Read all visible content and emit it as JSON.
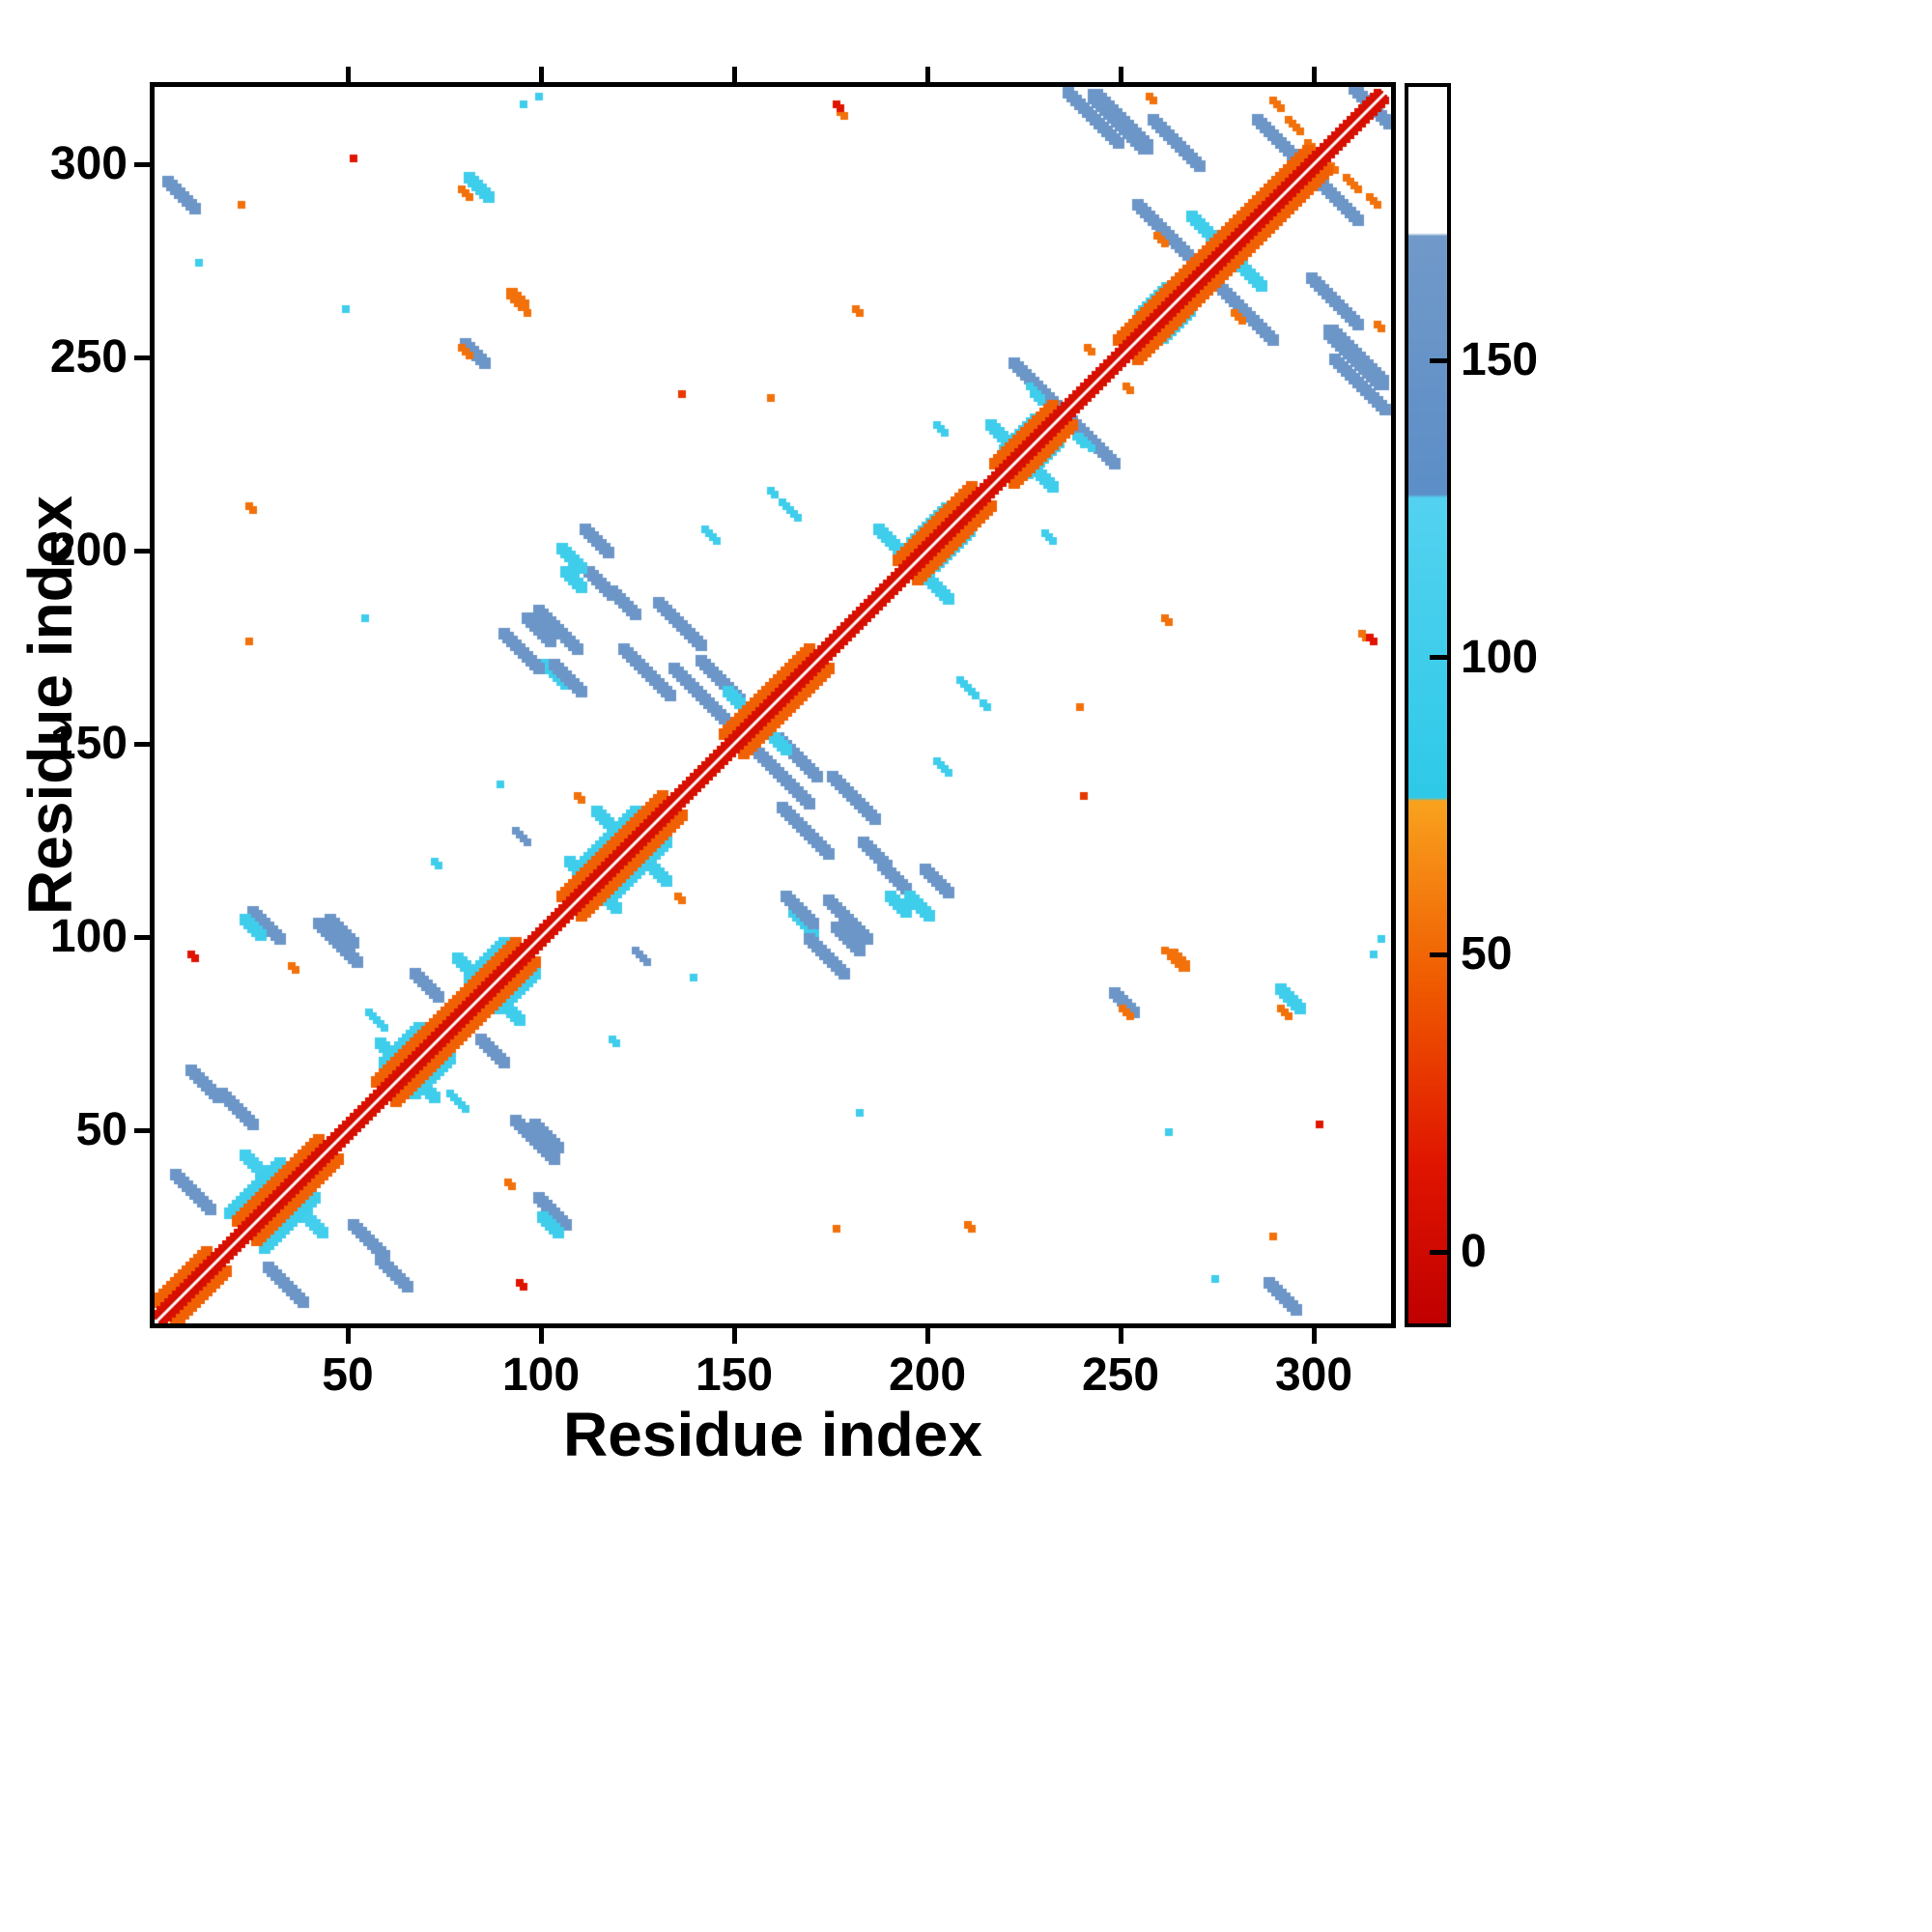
{
  "chart_data": {
    "type": "heatmap",
    "title": "",
    "xlabel": "Residue index",
    "ylabel": "Residue index",
    "x_range": [
      0,
      320
    ],
    "y_range": [
      0,
      320
    ],
    "x_ticks": [
      50,
      100,
      150,
      200,
      250,
      300
    ],
    "y_ticks": [
      50,
      100,
      150,
      200,
      250,
      300
    ],
    "grid": false,
    "legend": "none",
    "background": "#ffffff",
    "frame_color": "#000000",
    "diagonal_gap": true,
    "colorbar": {
      "min": -12,
      "max": 196,
      "ticks": [
        0,
        50,
        100,
        150
      ],
      "stops": [
        [
          -12,
          "#c00000"
        ],
        [
          15,
          "#e01500"
        ],
        [
          45,
          "#ef5a00"
        ],
        [
          76,
          "#f9a21e"
        ],
        [
          76.5,
          "#2ec9e8"
        ],
        [
          127,
          "#53d2f0"
        ],
        [
          127.5,
          "#5c8ec7"
        ],
        [
          171,
          "#7199c9"
        ],
        [
          171.5,
          "#ffffff"
        ],
        [
          196,
          "#ffffff"
        ]
      ]
    },
    "feature_format": [
      "x_residue",
      "y_residue",
      "length",
      "direction(a=antiparallel,p=parallel)",
      "width",
      "colorbar_value"
    ],
    "features": [
      [
        4,
        296,
        8,
        "a",
        3,
        160
      ],
      [
        18,
        60,
        9,
        "a",
        3,
        160
      ],
      [
        43,
        104,
        11,
        "a",
        3,
        160
      ],
      [
        30,
        15,
        10,
        "a",
        3,
        160
      ],
      [
        59,
        17,
        8,
        "a",
        3,
        160
      ],
      [
        100,
        33,
        8,
        "a",
        3,
        160
      ],
      [
        99,
        52,
        7,
        "a",
        3,
        160
      ],
      [
        85,
        74,
        7,
        "a",
        3,
        160
      ],
      [
        24,
        105,
        5,
        "a",
        3,
        100
      ],
      [
        10,
        96,
        2,
        "a",
        2,
        15
      ],
      [
        36,
        93,
        2,
        "a",
        2,
        55
      ],
      [
        97,
        183,
        7,
        "a",
        3,
        160
      ],
      [
        102,
        171,
        6,
        "a",
        3,
        100
      ],
      [
        107,
        195,
        5,
        "a",
        3,
        100
      ],
      [
        112,
        206,
        7,
        "a",
        3,
        160
      ],
      [
        119,
        190,
        7,
        "a",
        3,
        160
      ],
      [
        131,
        187,
        12,
        "a",
        3,
        160
      ],
      [
        142,
        172,
        11,
        "a",
        3,
        160
      ],
      [
        157,
        148,
        14,
        "a",
        3,
        160
      ],
      [
        163,
        134,
        13,
        "a",
        3,
        160
      ],
      [
        175,
        110,
        11,
        "a",
        3,
        160
      ],
      [
        170,
        100,
        10,
        "a",
        3,
        160
      ],
      [
        164,
        111,
        8,
        "a",
        3,
        160
      ],
      [
        189,
        119,
        7,
        "a",
        3,
        160
      ],
      [
        196,
        111,
        6,
        "a",
        3,
        100
      ],
      [
        209,
        167,
        5,
        "a",
        2,
        100
      ],
      [
        231,
        205,
        3,
        "a",
        2,
        100
      ],
      [
        223,
        249,
        14,
        "a",
        3,
        160
      ],
      [
        237,
        319,
        14,
        "a",
        3,
        160
      ],
      [
        255,
        290,
        14,
        "a",
        3,
        160
      ],
      [
        262,
        283,
        13,
        "a",
        3,
        160
      ],
      [
        286,
        312,
        13,
        "a",
        3,
        160
      ],
      [
        300,
        271,
        13,
        "a",
        3,
        160
      ],
      [
        305,
        257,
        14,
        "a",
        4,
        160
      ],
      [
        311,
        320,
        10,
        "a",
        3,
        160
      ],
      [
        82,
        297,
        6,
        "a",
        3,
        100
      ],
      [
        80,
        294,
        3,
        "a",
        2,
        55
      ],
      [
        249,
        86,
        6,
        "a",
        3,
        160
      ],
      [
        251,
        82,
        3,
        "a",
        2,
        55
      ],
      [
        264,
        96,
        4,
        "a",
        3,
        55
      ],
      [
        12,
        275,
        1,
        "a",
        2,
        100
      ],
      [
        50,
        263,
        1,
        "a",
        2,
        100
      ],
      [
        23,
        290,
        1,
        "a",
        2,
        55
      ],
      [
        25,
        212,
        2,
        "a",
        2,
        55
      ],
      [
        25,
        177,
        1,
        "a",
        2,
        55
      ],
      [
        55,
        183,
        1,
        "a",
        2,
        100
      ],
      [
        96,
        316,
        1,
        "a",
        2,
        100
      ],
      [
        97,
        262,
        1,
        "a",
        2,
        55
      ],
      [
        178,
        314,
        2,
        "a",
        2,
        55
      ],
      [
        160,
        240,
        1,
        "a",
        2,
        55
      ],
      [
        137,
        241,
        1,
        "a",
        2,
        30
      ],
      [
        160,
        216,
        2,
        "a",
        2,
        100
      ],
      [
        143,
        206,
        4,
        "a",
        2,
        100
      ],
      [
        110,
        137,
        2,
        "a",
        2,
        55
      ],
      [
        90,
        140,
        1,
        "a",
        2,
        100
      ],
      [
        94,
        128,
        4,
        "a",
        2,
        160
      ],
      [
        73,
        120,
        2,
        "a",
        2,
        100
      ],
      [
        262,
        183,
        2,
        "a",
        2,
        55
      ],
      [
        315,
        178,
        2,
        "a",
        2,
        15
      ],
      [
        302,
        52,
        1,
        "a",
        2,
        15
      ],
      [
        318,
        100,
        1,
        "a",
        2,
        100
      ],
      [
        258,
        318,
        2,
        "a",
        2,
        55
      ],
      [
        290,
        317,
        3,
        "a",
        2,
        55
      ],
      [
        299,
        306,
        3,
        "a",
        2,
        55
      ],
      [
        309,
        297,
        4,
        "a",
        2,
        55
      ],
      [
        280,
        262,
        3,
        "a",
        2,
        55
      ],
      [
        252,
        243,
        2,
        "a",
        2,
        55
      ],
      [
        227,
        243,
        4,
        "a",
        2,
        100
      ],
      [
        239,
        230,
        3,
        "a",
        2,
        100
      ],
      [
        77,
        60,
        5,
        "a",
        2,
        100
      ],
      [
        24,
        44,
        20,
        "a",
        3,
        105
      ],
      [
        59,
        73,
        14,
        "a",
        3,
        100
      ],
      [
        79,
        95,
        16,
        "a",
        3,
        100
      ],
      [
        108,
        120,
        12,
        "a",
        3,
        100
      ],
      [
        115,
        133,
        14,
        "a",
        3,
        100
      ],
      [
        149,
        164,
        15,
        "a",
        3,
        100
      ],
      [
        188,
        206,
        10,
        "a",
        3,
        100
      ],
      [
        217,
        233,
        16,
        "a",
        3,
        100
      ],
      [
        269,
        287,
        18,
        "a",
        3,
        100
      ],
      [
        20,
        29,
        14,
        "p",
        3,
        100
      ],
      [
        60,
        68,
        10,
        "p",
        3,
        100
      ],
      [
        82,
        90,
        10,
        "p",
        3,
        100
      ],
      [
        110,
        118,
        16,
        "p",
        3,
        100
      ],
      [
        196,
        203,
        10,
        "p",
        2,
        100
      ],
      [
        220,
        227,
        9,
        "p",
        2,
        100
      ],
      [
        255,
        262,
        8,
        "p",
        2,
        100
      ],
      [
        1,
        6,
        14,
        "p",
        3,
        48
      ],
      [
        22,
        27,
        22,
        "p",
        3,
        48
      ],
      [
        58,
        63,
        37,
        "p",
        3,
        48
      ],
      [
        106,
        111,
        27,
        "p",
        3,
        48
      ],
      [
        148,
        153,
        23,
        "p",
        3,
        48
      ],
      [
        193,
        198,
        20,
        "p",
        3,
        48
      ],
      [
        218,
        223,
        16,
        "p",
        3,
        48
      ],
      [
        250,
        255,
        50,
        "p",
        3,
        48
      ],
      [
        1,
        3,
        317,
        "p",
        2,
        8
      ],
      [
        1,
        2,
        318,
        "p",
        1,
        4
      ]
    ]
  }
}
